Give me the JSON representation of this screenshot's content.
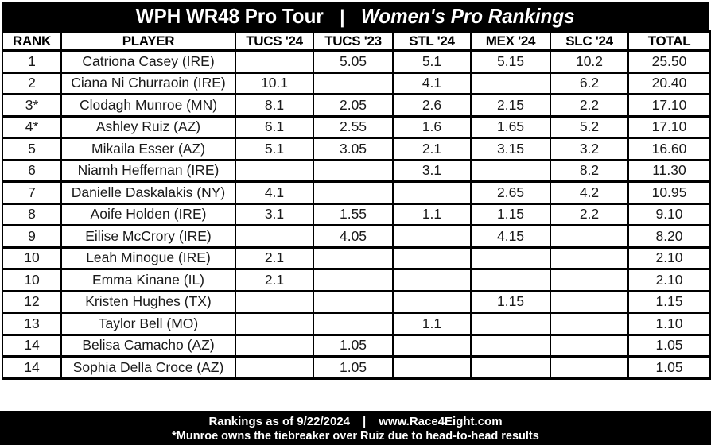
{
  "title": {
    "left": "WPH WR48 Pro Tour",
    "separator": "|",
    "right": "Women's Pro Rankings"
  },
  "table": {
    "columns": [
      "RANK",
      "PLAYER",
      "TUCS '24",
      "TUCS '23",
      "STL '24",
      "MEX '24",
      "SLC '24",
      "TOTAL"
    ],
    "field_names": [
      "rank",
      "player",
      "tucs-24",
      "tucs-23",
      "stl-24",
      "mex-24",
      "slc-24",
      "total"
    ],
    "rows": [
      [
        "1",
        "Catriona Casey (IRE)",
        "",
        "5.05",
        "5.1",
        "5.15",
        "10.2",
        "25.50"
      ],
      [
        "2",
        "Ciana Ni Churraoin (IRE)",
        "10.1",
        "",
        "4.1",
        "",
        "6.2",
        "20.40"
      ],
      [
        "3*",
        "Clodagh Munroe (MN)",
        "8.1",
        "2.05",
        "2.6",
        "2.15",
        "2.2",
        "17.10"
      ],
      [
        "4*",
        "Ashley Ruiz (AZ)",
        "6.1",
        "2.55",
        "1.6",
        "1.65",
        "5.2",
        "17.10"
      ],
      [
        "5",
        "Mikaila Esser (AZ)",
        "5.1",
        "3.05",
        "2.1",
        "3.15",
        "3.2",
        "16.60"
      ],
      [
        "6",
        "Niamh Heffernan (IRE)",
        "",
        "",
        "3.1",
        "",
        "8.2",
        "11.30"
      ],
      [
        "7",
        "Danielle Daskalakis (NY)",
        "4.1",
        "",
        "",
        "2.65",
        "4.2",
        "10.95"
      ],
      [
        "8",
        "Aoife Holden (IRE)",
        "3.1",
        "1.55",
        "1.1",
        "1.15",
        "2.2",
        "9.10"
      ],
      [
        "9",
        "Eilise McCrory (IRE)",
        "",
        "4.05",
        "",
        "4.15",
        "",
        "8.20"
      ],
      [
        "10",
        "Leah Minogue (IRE)",
        "2.1",
        "",
        "",
        "",
        "",
        "2.10"
      ],
      [
        "10",
        "Emma Kinane (IL)",
        "2.1",
        "",
        "",
        "",
        "",
        "2.10"
      ],
      [
        "12",
        "Kristen Hughes (TX)",
        "",
        "",
        "",
        "1.15",
        "",
        "1.15"
      ],
      [
        "13",
        "Taylor Bell (MO)",
        "",
        "",
        "1.1",
        "",
        "",
        "1.10"
      ],
      [
        "14",
        "Belisa Camacho (AZ)",
        "",
        "1.05",
        "",
        "",
        "",
        "1.05"
      ],
      [
        "14",
        "Sophia Della Croce (AZ)",
        "",
        "1.05",
        "",
        "",
        "",
        "1.05"
      ]
    ]
  },
  "footer": {
    "date_text": "Rankings as of 9/22/2024",
    "separator": "|",
    "site_text": "www.Race4Eight.com",
    "note": "*Munroe owns the tiebreaker over Ruiz due to head-to-head results"
  },
  "colors": {
    "bar_background": "#000000",
    "bar_text": "#ffffff",
    "grid": "#000000",
    "cell_background": "#ffffff",
    "cell_text": "#1a1a1a"
  }
}
